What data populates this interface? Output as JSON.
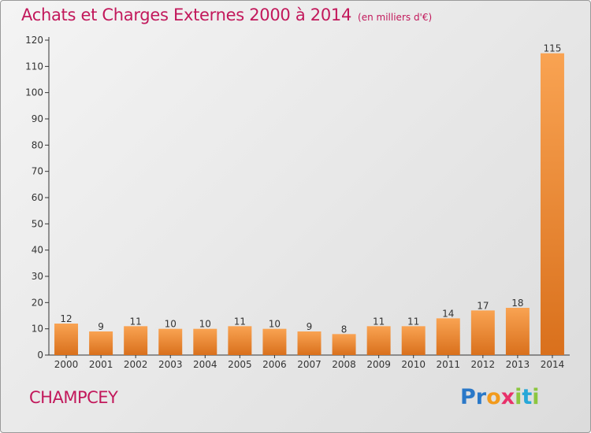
{
  "title": "Achats et Charges Externes 2000 à 2014",
  "unit_note": "(en milliers d'€)",
  "commune": "CHAMPCEY",
  "brand": "Proxiti",
  "colors": {
    "accent": "#c2185b",
    "bar_light": "#f9a352",
    "bar_dark": "#d9701c"
  },
  "chart_data": {
    "type": "bar",
    "categories": [
      "2000",
      "2001",
      "2002",
      "2003",
      "2004",
      "2005",
      "2006",
      "2007",
      "2008",
      "2009",
      "2010",
      "2011",
      "2012",
      "2013",
      "2014"
    ],
    "values": [
      12,
      9,
      11,
      10,
      10,
      11,
      10,
      9,
      8,
      11,
      11,
      14,
      17,
      18,
      115
    ],
    "ylim": [
      0,
      120
    ],
    "yticks": [
      0,
      10,
      20,
      30,
      40,
      50,
      60,
      70,
      80,
      90,
      100,
      110,
      120
    ],
    "grid": false
  }
}
